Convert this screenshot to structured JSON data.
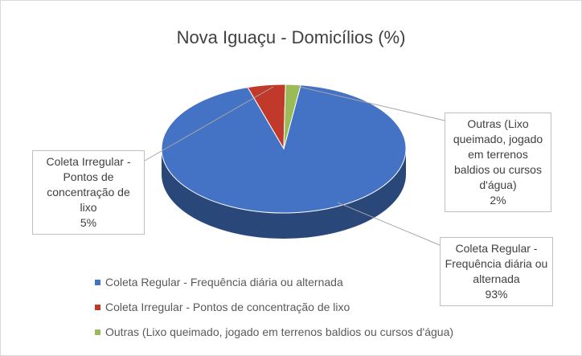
{
  "chart_data": {
    "type": "pie3d",
    "title": "Nova Iguaçu - Domicílios (%)",
    "categories": [
      "Coleta Regular - Frequência diária ou alternada",
      "Coleta Irregular - Pontos de concentração de lixo",
      "Outras  (Lixo queimado, jogado em terrenos baldios ou cursos d'água)"
    ],
    "values": [
      93,
      5,
      2
    ],
    "value_labels": [
      "93%",
      "5%",
      "2%"
    ],
    "colors": [
      "#4472c4",
      "#c0392b",
      "#9bbb59"
    ],
    "legend": "bottom-left"
  }
}
